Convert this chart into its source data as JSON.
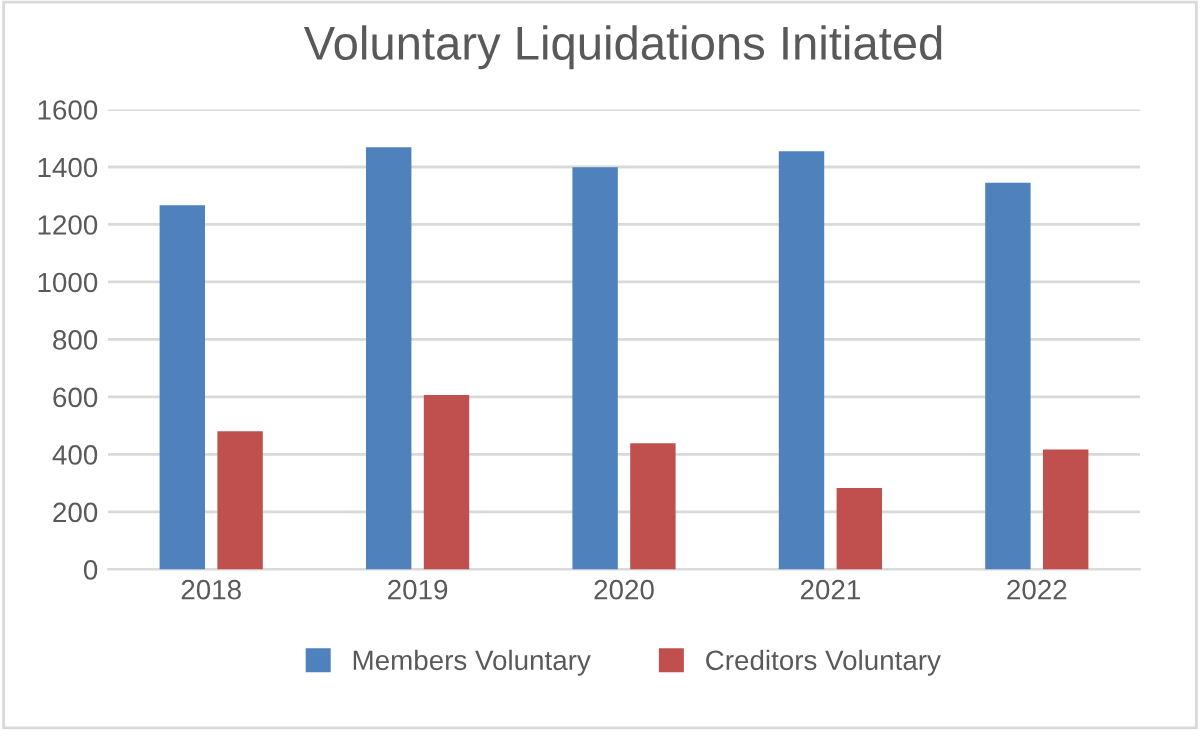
{
  "chart_data": {
    "type": "bar",
    "title": "Voluntary Liquidations Initiated",
    "categories": [
      "2018",
      "2019",
      "2020",
      "2021",
      "2022"
    ],
    "series": [
      {
        "name": "Members Voluntary",
        "color": "#4f81bd",
        "values": [
          1267,
          1469,
          1399,
          1455,
          1345
        ]
      },
      {
        "name": "Creditors Voluntary",
        "color": "#c0504d",
        "values": [
          481,
          607,
          439,
          283,
          417
        ]
      }
    ],
    "ylim": [
      0,
      1600
    ],
    "yticks": [
      0,
      200,
      400,
      600,
      800,
      1000,
      1200,
      1400,
      1600
    ],
    "grid": "y",
    "legend": "bottom"
  }
}
